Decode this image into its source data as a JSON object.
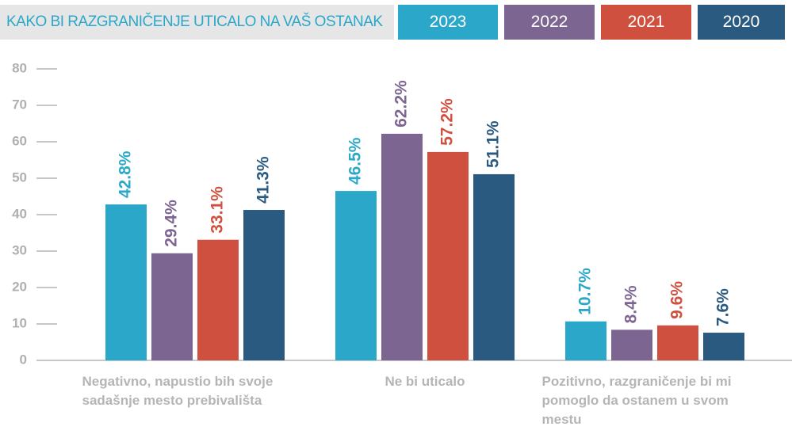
{
  "chart_data": {
    "type": "bar",
    "title": "KAKO BI RAZGRANIČENJE UTICALO NA VAŠ OSTANAK",
    "categories": [
      "Negativno, napustio bih svoje sadašnje mesto prebivališta",
      "Ne bi uticalo",
      "Pozitivno, razgraničenje bi mi pomoglo da ostanem u svom mestu"
    ],
    "series": [
      {
        "name": "2023",
        "color": "#2aa7c9",
        "values": [
          42.8,
          46.5,
          10.7
        ],
        "value_labels": [
          "42.8%",
          "46.5%",
          "10.7%"
        ]
      },
      {
        "name": "2022",
        "color": "#7d6591",
        "values": [
          29.4,
          62.2,
          8.4
        ],
        "value_labels": [
          "29.4%",
          "62.2%",
          "8.4%"
        ]
      },
      {
        "name": "2021",
        "color": "#d05040",
        "values": [
          33.1,
          57.2,
          9.6
        ],
        "value_labels": [
          "33.1%",
          "57.2%",
          "9.6%"
        ]
      },
      {
        "name": "2020",
        "color": "#2b5a80",
        "values": [
          41.3,
          51.1,
          7.6
        ],
        "value_labels": [
          "41.3%",
          "51.1%",
          "7.6%"
        ]
      }
    ],
    "ylim": [
      0,
      80
    ],
    "yticks": [
      0,
      10,
      20,
      30,
      40,
      50,
      60,
      70,
      80
    ]
  }
}
